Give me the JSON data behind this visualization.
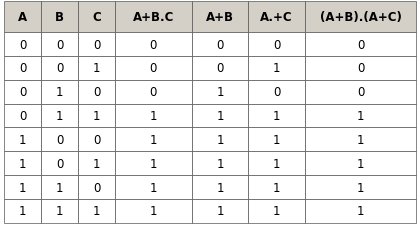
{
  "columns": [
    "A",
    "B",
    "C",
    "A+B.C",
    "A+B",
    "A.+C",
    "(A+B).(A+C)"
  ],
  "rows": [
    [
      "0",
      "0",
      "0",
      "0",
      "0",
      "0",
      "0"
    ],
    [
      "0",
      "0",
      "1",
      "0",
      "0",
      "1",
      "0"
    ],
    [
      "0",
      "1",
      "0",
      "0",
      "1",
      "0",
      "0"
    ],
    [
      "0",
      "1",
      "1",
      "1",
      "1",
      "1",
      "1"
    ],
    [
      "1",
      "0",
      "0",
      "1",
      "1",
      "1",
      "1"
    ],
    [
      "1",
      "0",
      "1",
      "1",
      "1",
      "1",
      "1"
    ],
    [
      "1",
      "1",
      "0",
      "1",
      "1",
      "1",
      "1"
    ],
    [
      "1",
      "1",
      "1",
      "1",
      "1",
      "1",
      "1"
    ]
  ],
  "header_bg": "#d4d0c8",
  "header_text_color": "#000000",
  "cell_bg": "#ffffff",
  "cell_text_color": "#000000",
  "border_color": "#555555",
  "fig_bg": "#ffffff",
  "header_fontsize": 8.5,
  "cell_fontsize": 8.5,
  "col_widths": [
    0.65,
    0.65,
    0.65,
    1.35,
    1.0,
    1.0,
    1.95
  ],
  "figsize": [
    4.2,
    2.26
  ],
  "dpi": 100
}
